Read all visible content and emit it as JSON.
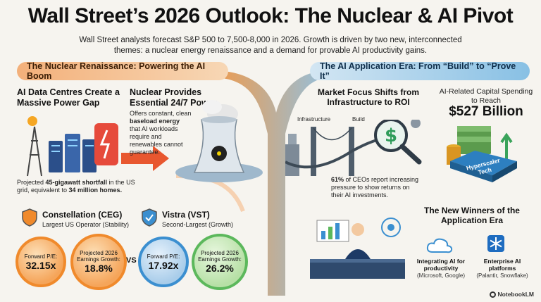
{
  "title": "Wall Street’s 2026 Outlook: The Nuclear & AI Pivot",
  "subtitle": "Wall Street analysts forecast S&P 500 to 7,500-8,000 in 2026. Growth is driven by two new, interconnected themes: a nuclear energy renaissance and a demand for provable AI productivity gains.",
  "banners": {
    "left": "The Nuclear Renaissance: Powering the AI Boom",
    "right": "The AI Application Era: From “Build” to “Prove It”"
  },
  "data_centres": {
    "heading": "AI Data Centres Create a Massive Power Gap",
    "note_prefix": "Projected ",
    "note_bold1": "45-gigawatt shortfall",
    "note_mid": " in the US grid, equivalent to ",
    "note_bold2": "34 million homes."
  },
  "nuclear": {
    "heading": "Nuclear Provides Essential 24/7 Power",
    "desc_prefix": "Offers constant, clean ",
    "desc_bold": "baseload energy",
    "desc_suffix": " that AI workloads require and renewables cannot guarantee."
  },
  "companies": [
    {
      "name": "Constellation (CEG)",
      "desc": "Largest US Operator (Stability)",
      "pe_label": "Forward P/E:",
      "pe_value": "32.15x",
      "growth_label": "Projected 2026 Earnings Growth:",
      "growth_value": "18.8%"
    },
    {
      "name": "Vistra (VST)",
      "desc": "Second-Largest (Growth)",
      "pe_label": "Forward P/E:",
      "pe_value": "17.92x",
      "growth_label": "Projected 2026 Earnings Growth:",
      "growth_value": "26.2%"
    }
  ],
  "vs_label": "VS",
  "market_focus": {
    "heading": "Market Focus Shifts from Infrastructure to ROI",
    "label_infra": "Infrastructure",
    "label_build": "Build",
    "note_bold": "61%",
    "note_rest": " of CEOs report increasing pressure to show returns on their AI investments."
  },
  "capital": {
    "heading": "AI-Related Capital Spending to Reach",
    "amount": "$527 Billion",
    "box_label": "Hyperscaler Tech"
  },
  "winners": {
    "heading": "The New Winners of the Application Era",
    "items": [
      {
        "title": "Integrating AI for productivity",
        "sub": "(Microsoft, Google)"
      },
      {
        "title": "Enterprise AI platforms",
        "sub": "(Palantir, Snowflake)"
      }
    ]
  },
  "watermark": "NotebookLM",
  "colors": {
    "orange": "#f08a2c",
    "blue": "#3b8fd0",
    "green": "#5cb85c"
  }
}
